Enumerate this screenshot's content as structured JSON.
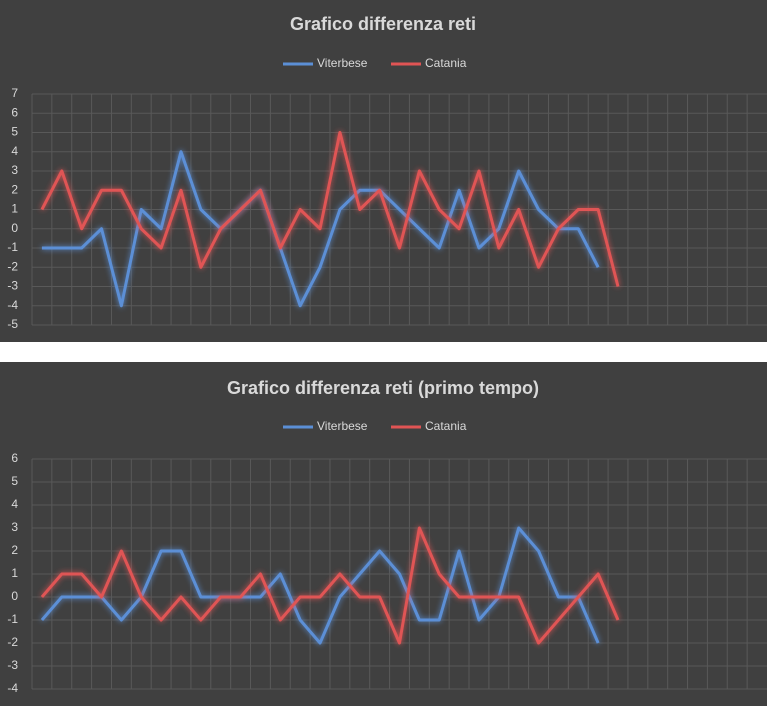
{
  "chart_data": [
    {
      "type": "line",
      "title": "Grafico differenza reti",
      "categories": [
        null,
        null,
        null,
        null,
        null,
        null,
        null,
        null,
        null,
        null,
        null,
        null,
        null,
        null,
        null,
        null,
        null,
        null,
        null,
        null,
        null,
        null,
        null,
        null,
        null,
        null,
        null,
        null,
        null,
        null,
        null,
        null,
        null,
        null,
        null,
        null,
        null
      ],
      "series": [
        {
          "name": "Viterbese",
          "color": "#5b8fd6",
          "values": [
            -1,
            -1,
            -1,
            0,
            -4,
            1,
            0,
            4,
            1,
            0,
            1,
            2,
            -1,
            -4,
            -2,
            1,
            2,
            2,
            1,
            0,
            -1,
            2,
            -1,
            0,
            3,
            1,
            0,
            0,
            -2,
            null,
            null,
            null,
            null,
            null,
            null,
            null,
            null
          ]
        },
        {
          "name": "Catania",
          "color": "#e05454",
          "values": [
            1,
            3,
            0,
            2,
            2,
            0,
            -1,
            2,
            -2,
            0,
            1,
            2,
            -1,
            1,
            0,
            5,
            1,
            2,
            -1,
            3,
            1,
            0,
            3,
            -1,
            1,
            -2,
            0,
            1,
            1,
            -3,
            null,
            null,
            null,
            null,
            null,
            null,
            null
          ]
        }
      ],
      "ylim": [
        -5,
        7
      ],
      "yticks": [
        -5,
        -4,
        -3,
        -2,
        -1,
        0,
        1,
        2,
        3,
        4,
        5,
        6,
        7
      ],
      "grid": true,
      "legend": "top"
    },
    {
      "type": "line",
      "title": "Grafico differenza reti (primo tempo)",
      "categories": [
        null,
        null,
        null,
        null,
        null,
        null,
        null,
        null,
        null,
        null,
        null,
        null,
        null,
        null,
        null,
        null,
        null,
        null,
        null,
        null,
        null,
        null,
        null,
        null,
        null,
        null,
        null,
        null,
        null,
        null,
        null,
        null,
        null,
        null,
        null,
        null,
        null
      ],
      "series": [
        {
          "name": "Viterbese",
          "color": "#5b8fd6",
          "values": [
            -1,
            0,
            0,
            0,
            -1,
            0,
            2,
            2,
            0,
            0,
            0,
            0,
            1,
            -1,
            -2,
            0,
            1,
            2,
            1,
            -1,
            -1,
            2,
            -1,
            0,
            3,
            2,
            0,
            0,
            -2,
            null,
            null,
            null,
            null,
            null,
            null,
            null,
            null
          ]
        },
        {
          "name": "Catania",
          "color": "#e05454",
          "values": [
            0,
            1,
            1,
            0,
            2,
            0,
            -1,
            0,
            -1,
            0,
            0,
            1,
            -1,
            0,
            0,
            1,
            0,
            0,
            -2,
            3,
            1,
            0,
            0,
            0,
            0,
            -2,
            -1,
            0,
            1,
            -1,
            null,
            null,
            null,
            null,
            null,
            null,
            null
          ]
        }
      ],
      "ylim": [
        -4,
        6
      ],
      "yticks": [
        -4,
        -3,
        -2,
        -1,
        0,
        1,
        2,
        3,
        4,
        5,
        6
      ],
      "grid": true,
      "legend": "top"
    }
  ]
}
